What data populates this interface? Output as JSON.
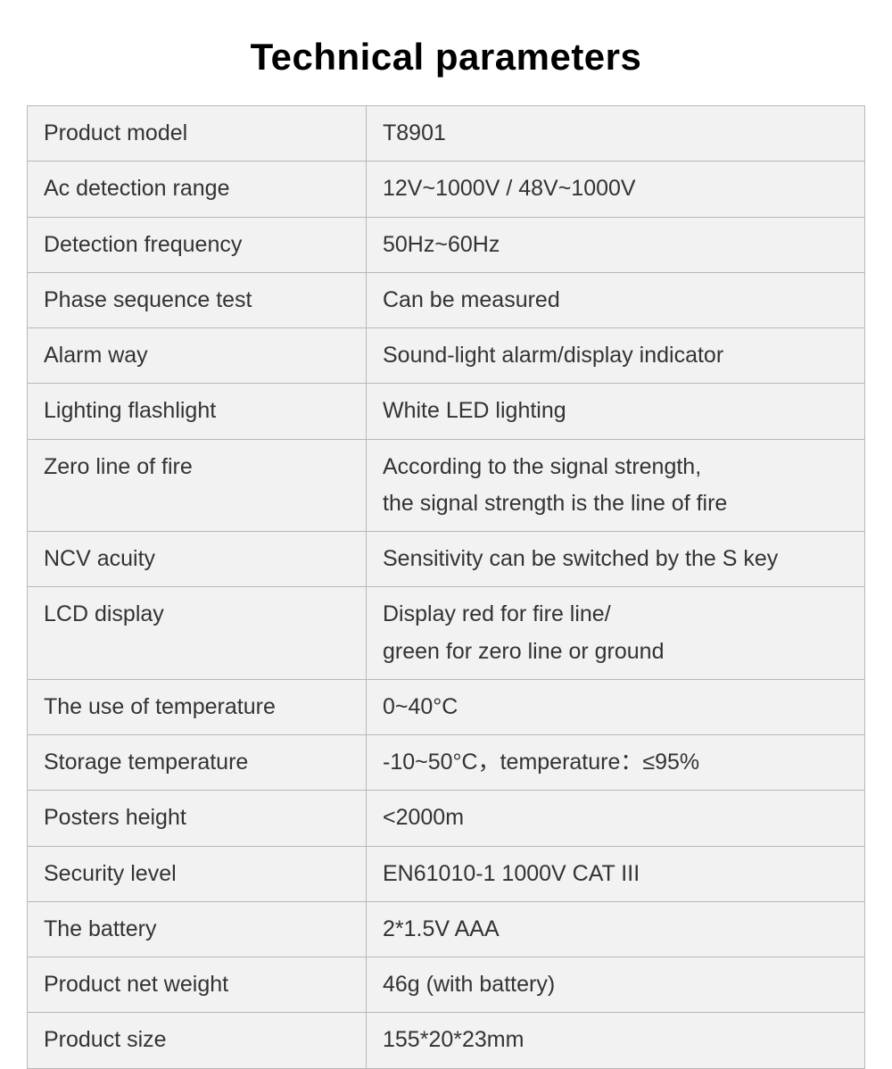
{
  "title": "Technical parameters",
  "table": {
    "background_color": "#f2f2f2",
    "border_color": "#b8b8b8",
    "text_color": "#333333",
    "font_size": 25,
    "label_column_width": 380,
    "rows": [
      {
        "label": "Product model",
        "value": "T8901"
      },
      {
        "label": "Ac detection range",
        "value": "12V~1000V / 48V~1000V"
      },
      {
        "label": "Detection frequency",
        "value": "50Hz~60Hz"
      },
      {
        "label": "Phase sequence test",
        "value": "Can be measured"
      },
      {
        "label": "Alarm way",
        "value": "Sound-light alarm/display indicator"
      },
      {
        "label": "Lighting flashlight",
        "value": "White LED lighting"
      },
      {
        "label": "Zero line of fire",
        "value": "According to the signal strength,\nthe signal strength is the line of fire"
      },
      {
        "label": "NCV acuity",
        "value": "Sensitivity can be switched by the S key"
      },
      {
        "label": " LCD display",
        "value": "Display red for fire line/\ngreen for zero line or ground"
      },
      {
        "label": "The use of temperature",
        "value": "0~40°C"
      },
      {
        "label": "Storage temperature",
        "value": "-10~50°C，temperature：≤95%"
      },
      {
        "label": "Posters height",
        "value": "<2000m"
      },
      {
        "label": "Security level",
        "value": "EN61010-1 1000V CAT III"
      },
      {
        "label": "The battery",
        "value": "2*1.5V AAA"
      },
      {
        "label": "Product net weight",
        "value": "46g (with battery)"
      },
      {
        "label": "Product size",
        "value": "155*20*23mm"
      }
    ]
  },
  "title_style": {
    "font_size": 42,
    "font_weight": 700,
    "color": "#000000"
  }
}
